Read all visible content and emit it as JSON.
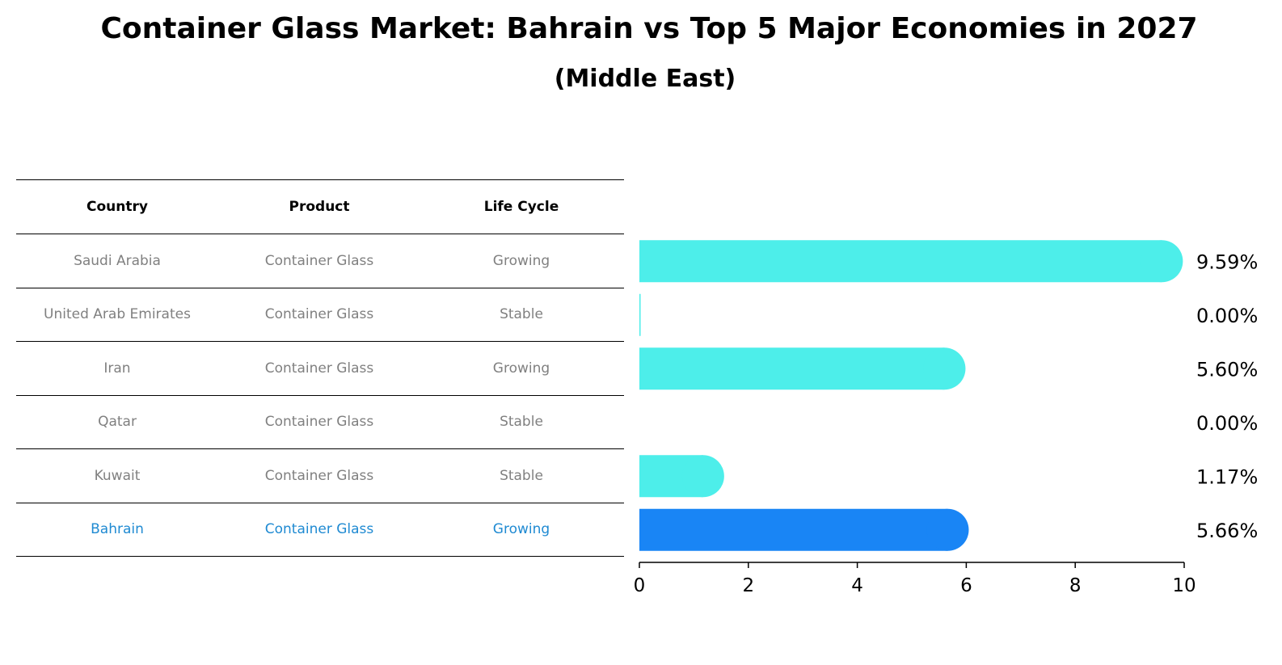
{
  "title": "Container Glass Market: Bahrain vs Top 5 Major Economies in 2027",
  "subtitle": "(Middle East)",
  "table": {
    "headers": [
      "Country",
      "Product",
      "Life Cycle"
    ],
    "rows": [
      [
        "Saudi Arabia",
        "Container Glass",
        "Growing"
      ],
      [
        "United Arab Emirates",
        "Container Glass",
        "Stable"
      ],
      [
        "Iran",
        "Container Glass",
        "Growing"
      ],
      [
        "Qatar",
        "Container Glass",
        "Stable"
      ],
      [
        "Kuwait",
        "Container Glass",
        "Stable"
      ],
      [
        "Bahrain",
        "Container Glass",
        "Growing"
      ]
    ],
    "highlight_row": 5
  },
  "chart_data": {
    "type": "bar",
    "orientation": "horizontal",
    "categories": [
      "Saudi Arabia",
      "United Arab Emirates",
      "Iran",
      "Qatar",
      "Kuwait",
      "Bahrain"
    ],
    "values": [
      9.59,
      0.0,
      5.6,
      0.0,
      1.17,
      5.66
    ],
    "value_labels": [
      "9.59%",
      "0.00%",
      "5.60%",
      "0.00%",
      "1.17%",
      "5.66%"
    ],
    "xlim": [
      0,
      10
    ],
    "xticks": [
      0,
      2,
      4,
      6,
      8,
      10
    ],
    "grid": false,
    "colors": {
      "default": "#4deeea",
      "highlight": "#1985f5"
    },
    "highlight_index": 5
  }
}
